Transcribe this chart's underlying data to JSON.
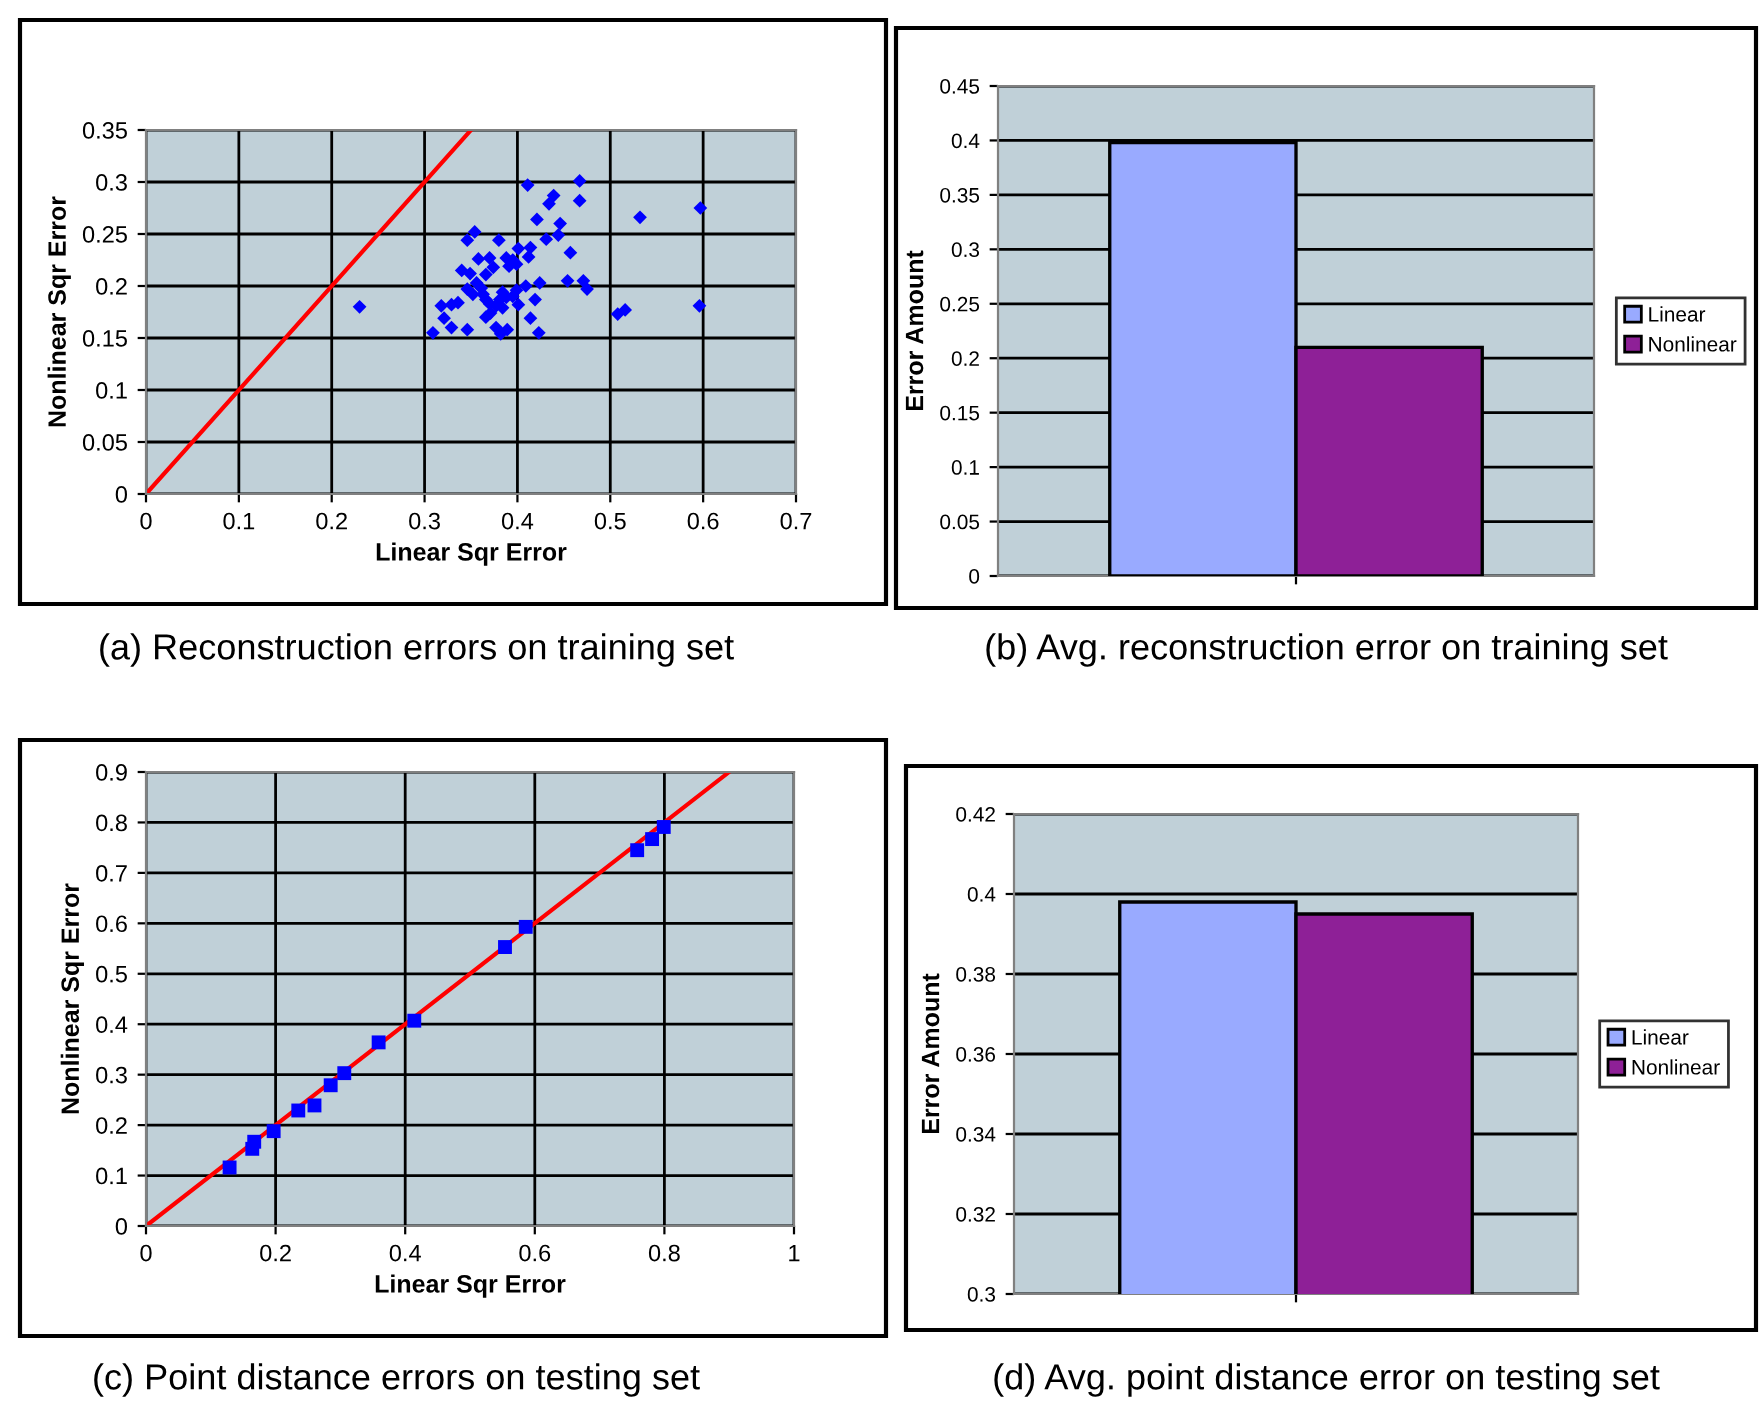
{
  "chart_data": [
    {
      "type": "scatter",
      "xlabel": "Linear Sqr Error",
      "ylabel": "Nonlinear Sqr Error",
      "annotations": [
        "(a) Reconstruction errors on training set"
      ],
      "xlim": [
        0,
        0.7
      ],
      "xticks": [
        0,
        0.1,
        0.2,
        0.3,
        0.4,
        0.5,
        0.6,
        0.7
      ],
      "ylim": [
        0,
        0.35
      ],
      "yticks": [
        0,
        0.05,
        0.1,
        0.15,
        0.2,
        0.25,
        0.3,
        0.35
      ],
      "grid": true,
      "legend": false,
      "marker": "diamond",
      "series": [
        {
          "type": "scatter",
          "color": "#0000ff",
          "x": [
            0.411,
            0.467,
            0.467,
            0.439,
            0.434,
            0.532,
            0.597,
            0.421,
            0.446,
            0.444,
            0.431,
            0.354,
            0.346,
            0.38,
            0.457,
            0.401,
            0.414,
            0.412,
            0.358,
            0.37,
            0.388,
            0.395,
            0.391,
            0.399,
            0.374,
            0.366,
            0.34,
            0.349,
            0.454,
            0.471,
            0.475,
            0.424,
            0.409,
            0.399,
            0.356,
            0.361,
            0.346,
            0.352,
            0.363,
            0.384,
            0.381,
            0.388,
            0.395,
            0.377,
            0.384,
            0.366,
            0.37,
            0.401,
            0.419,
            0.318,
            0.329,
            0.336,
            0.321,
            0.366,
            0.371,
            0.414,
            0.329,
            0.346,
            0.309,
            0.377,
            0.382,
            0.389,
            0.423,
            0.508,
            0.516,
            0.596,
            0.23
          ],
          "values": [
            0.297,
            0.301,
            0.282,
            0.287,
            0.279,
            0.266,
            0.275,
            0.264,
            0.26,
            0.249,
            0.245,
            0.252,
            0.244,
            0.244,
            0.232,
            0.236,
            0.237,
            0.228,
            0.226,
            0.227,
            0.227,
            0.225,
            0.219,
            0.221,
            0.218,
            0.211,
            0.215,
            0.212,
            0.205,
            0.205,
            0.197,
            0.203,
            0.2,
            0.196,
            0.203,
            0.198,
            0.197,
            0.192,
            0.192,
            0.194,
            0.187,
            0.189,
            0.19,
            0.181,
            0.179,
            0.187,
            0.183,
            0.182,
            0.187,
            0.181,
            0.182,
            0.184,
            0.169,
            0.17,
            0.174,
            0.169,
            0.16,
            0.158,
            0.155,
            0.16,
            0.154,
            0.158,
            0.155,
            0.173,
            0.177,
            0.181,
            0.18
          ]
        },
        {
          "type": "line",
          "color": "#ff0000",
          "marker": "none",
          "line_style": "solid",
          "x": [
            0,
            0.35
          ],
          "values": [
            0,
            0.35
          ]
        }
      ]
    },
    {
      "type": "bar",
      "ylabel": "Error Amount",
      "annotations": [
        "(b) Avg. reconstruction error on training set"
      ],
      "categories": [
        null
      ],
      "ylim": [
        0,
        0.45
      ],
      "yticks": [
        0,
        0.05,
        0.1,
        0.15,
        0.2,
        0.25,
        0.3,
        0.35,
        0.4,
        0.45
      ],
      "grid": "y",
      "legend": "right",
      "series": [
        {
          "name": "Linear",
          "color": "#99aaff",
          "values": [
            0.398
          ]
        },
        {
          "name": "Nonlinear",
          "color": "#8e2097",
          "values": [
            0.21
          ]
        }
      ]
    },
    {
      "type": "scatter",
      "xlabel": "Linear Sqr Error",
      "ylabel": "Nonlinear Sqr Error",
      "annotations": [
        "(c) Point distance errors on testing set"
      ],
      "xlim": [
        0,
        1
      ],
      "xticks": [
        0,
        0.2,
        0.4,
        0.6,
        0.8,
        1
      ],
      "ylim": [
        0,
        0.9
      ],
      "yticks": [
        0,
        0.1,
        0.2,
        0.3,
        0.4,
        0.5,
        0.6,
        0.7,
        0.8,
        0.9
      ],
      "grid": true,
      "legend": false,
      "marker": "square",
      "series": [
        {
          "type": "scatter",
          "color": "#0000ff",
          "x": [
            0.129,
            0.164,
            0.167,
            0.197,
            0.235,
            0.26,
            0.285,
            0.306,
            0.359,
            0.414,
            0.554,
            0.586,
            0.758,
            0.781,
            0.799
          ],
          "values": [
            0.116,
            0.153,
            0.167,
            0.188,
            0.229,
            0.239,
            0.279,
            0.303,
            0.364,
            0.407,
            0.553,
            0.593,
            0.745,
            0.767,
            0.791
          ]
        },
        {
          "type": "line",
          "color": "#ff0000",
          "marker": "none",
          "line_style": "solid",
          "x": [
            0,
            0.9
          ],
          "values": [
            0,
            0.9
          ]
        }
      ]
    },
    {
      "type": "bar",
      "ylabel": "Error Amount",
      "annotations": [
        "(d) Avg. point distance error on testing set"
      ],
      "categories": [
        null
      ],
      "ylim": [
        0.3,
        0.42
      ],
      "yticks": [
        0.3,
        0.32,
        0.34,
        0.36,
        0.38,
        0.4,
        0.42
      ],
      "grid": "y",
      "legend": "right",
      "series": [
        {
          "name": "Linear",
          "color": "#99aaff",
          "values": [
            0.398
          ]
        },
        {
          "name": "Nonlinear",
          "color": "#8e2097",
          "values": [
            0.395
          ]
        }
      ]
    }
  ]
}
